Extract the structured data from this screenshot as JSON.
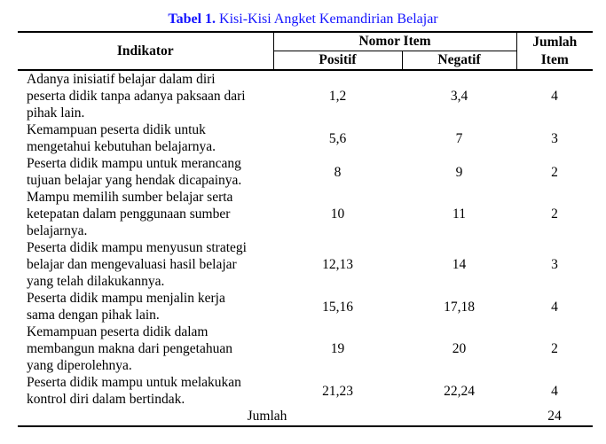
{
  "title": {
    "label": "Tabel 1.",
    "text": "Kisi-Kisi Angket Kemandirian Belajar"
  },
  "colors": {
    "title_blue": "#1414ff",
    "rule_black": "#000000"
  },
  "table": {
    "headers": {
      "indikator": "Indikator",
      "nomor_item": "Nomor Item",
      "positif": "Positif",
      "negatif": "Negatif",
      "jumlah_item": "Jumlah\nItem"
    },
    "rows": [
      {
        "indikator": "Adanya inisiatif belajar dalam diri\npeserta didik tanpa adanya paksaan dari\npihak lain.",
        "positif": "1,2",
        "negatif": "3,4",
        "jumlah": "4"
      },
      {
        "indikator": "Kemampuan peserta didik untuk\nmengetahui kebutuhan belajarnya.",
        "positif": "5,6",
        "negatif": "7",
        "jumlah": "3"
      },
      {
        "indikator": "Peserta didik mampu untuk merancang\ntujuan belajar yang hendak dicapainya.",
        "positif": "8",
        "negatif": "9",
        "jumlah": "2"
      },
      {
        "indikator": "Mampu memilih sumber belajar serta\nketepatan dalam penggunaan sumber\nbelajarnya.",
        "positif": "10",
        "negatif": "11",
        "jumlah": "2"
      },
      {
        "indikator": "Peserta didik mampu menyusun strategi\nbelajar dan mengevaluasi hasil belajar\nyang telah dilakukannya.",
        "positif": "12,13",
        "negatif": "14",
        "jumlah": "3"
      },
      {
        "indikator": "Peserta didik mampu menjalin kerja\nsama dengan pihak lain.",
        "positif": "15,16",
        "negatif": "17,18",
        "jumlah": "4"
      },
      {
        "indikator": "Kemampuan peserta didik dalam\nmembangun makna dari pengetahuan\nyang diperolehnya.",
        "positif": "19",
        "negatif": "20",
        "jumlah": "2"
      },
      {
        "indikator": "Peserta didik mampu untuk melakukan\nkontrol diri dalam bertindak.",
        "positif": "21,23",
        "negatif": "22,24",
        "jumlah": "4"
      }
    ],
    "footer": {
      "label": "Jumlah",
      "total": "24"
    }
  }
}
